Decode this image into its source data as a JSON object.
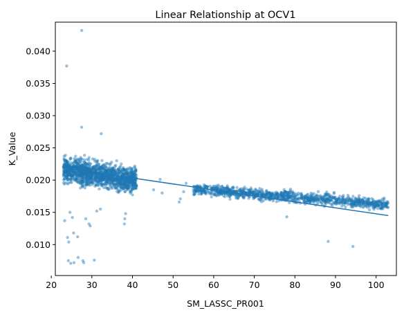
{
  "chart_data": {
    "type": "scatter",
    "title": "Linear Relationship at OCV1",
    "xlabel": "SM_LASSC_PR001",
    "ylabel": "K_Value",
    "xlim": [
      21.0,
      105.0
    ],
    "ylim": [
      0.0052,
      0.0445
    ],
    "xticks": [
      20,
      30,
      40,
      50,
      60,
      70,
      80,
      90,
      100
    ],
    "xtick_labels": [
      "20",
      "30",
      "40",
      "50",
      "60",
      "70",
      "80",
      "90",
      "100"
    ],
    "yticks": [
      0.01,
      0.015,
      0.02,
      0.025,
      0.03,
      0.035,
      0.04
    ],
    "ytick_labels": [
      "0.010",
      "0.015",
      "0.020",
      "0.025",
      "0.030",
      "0.035",
      "0.040"
    ],
    "grid": false,
    "legend": "none",
    "colors": {
      "series": "#1f77b4",
      "axes": "#000000"
    },
    "series": [
      {
        "kind": "scatter",
        "alpha": 0.45,
        "clusters": [
          {
            "x_range": [
              23,
              41
            ],
            "y_at_start": 0.0216,
            "y_at_end": 0.02,
            "y_spread": 0.0022,
            "density": "very high"
          },
          {
            "x_range": [
              55,
              103
            ],
            "y_at_start": 0.0186,
            "y_at_end": 0.0162,
            "y_spread": 0.001,
            "density": "high"
          }
        ],
        "points": [
          {
            "x": 27.5,
            "y": 0.0432
          },
          {
            "x": 23.8,
            "y": 0.0377
          },
          {
            "x": 27.5,
            "y": 0.0282
          },
          {
            "x": 32.3,
            "y": 0.0272
          },
          {
            "x": 24.0,
            "y": 0.0111
          },
          {
            "x": 24.3,
            "y": 0.0104
          },
          {
            "x": 25.5,
            "y": 0.0118
          },
          {
            "x": 26.5,
            "y": 0.0112
          },
          {
            "x": 24.2,
            "y": 0.0075
          },
          {
            "x": 24.8,
            "y": 0.0071
          },
          {
            "x": 25.6,
            "y": 0.0072
          },
          {
            "x": 26.6,
            "y": 0.008
          },
          {
            "x": 27.8,
            "y": 0.0075
          },
          {
            "x": 28.0,
            "y": 0.0072
          },
          {
            "x": 30.6,
            "y": 0.0076
          },
          {
            "x": 23.3,
            "y": 0.0137
          },
          {
            "x": 24.6,
            "y": 0.015
          },
          {
            "x": 25.2,
            "y": 0.0142
          },
          {
            "x": 28.5,
            "y": 0.014
          },
          {
            "x": 29.3,
            "y": 0.0132
          },
          {
            "x": 29.6,
            "y": 0.0129
          },
          {
            "x": 31.2,
            "y": 0.0152
          },
          {
            "x": 32.1,
            "y": 0.0155
          },
          {
            "x": 38.0,
            "y": 0.0132
          },
          {
            "x": 38.1,
            "y": 0.014
          },
          {
            "x": 38.3,
            "y": 0.0148
          },
          {
            "x": 45.2,
            "y": 0.0185
          },
          {
            "x": 46.8,
            "y": 0.0201
          },
          {
            "x": 47.3,
            "y": 0.018
          },
          {
            "x": 51.5,
            "y": 0.0166
          },
          {
            "x": 51.8,
            "y": 0.0171
          },
          {
            "x": 52.6,
            "y": 0.0182
          },
          {
            "x": 53.2,
            "y": 0.0195
          },
          {
            "x": 78.0,
            "y": 0.0143
          },
          {
            "x": 88.2,
            "y": 0.0105
          },
          {
            "x": 94.3,
            "y": 0.0097
          }
        ]
      },
      {
        "kind": "line",
        "x": [
          23.0,
          103.0
        ],
        "y": [
          0.0219,
          0.0145
        ]
      }
    ]
  }
}
